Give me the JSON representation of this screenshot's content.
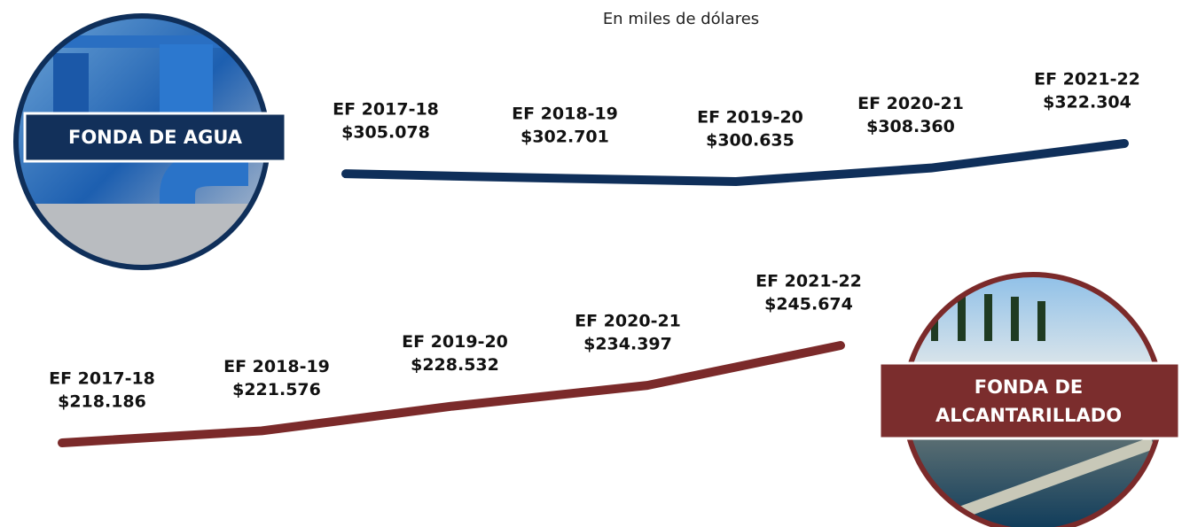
{
  "subtitle": "En miles de dólares",
  "chart_data": [
    {
      "type": "line",
      "title": "FONDA DE AGUA",
      "color": "#0f2f5a",
      "categories": [
        "EF 2017-18",
        "EF 2018-19",
        "EF 2019-20",
        "EF 2020-21",
        "EF 2021-22"
      ],
      "values": [
        305078,
        302701,
        300635,
        308360,
        322304
      ],
      "value_labels": [
        "$305.078",
        "$302.701",
        "$300.635",
        "$308.360",
        "$322.304"
      ]
    },
    {
      "type": "line",
      "title": "FONDA DE ALCANTARILLADO",
      "color": "#7b2a2a",
      "categories": [
        "EF 2017-18",
        "EF 2018-19",
        "EF 2019-20",
        "EF 2020-21",
        "EF 2021-22"
      ],
      "values": [
        218186,
        221576,
        228532,
        234397,
        245674
      ],
      "value_labels": [
        "$218.186",
        "$221.576",
        "$228.532",
        "$234.397",
        "$245.674"
      ]
    }
  ]
}
